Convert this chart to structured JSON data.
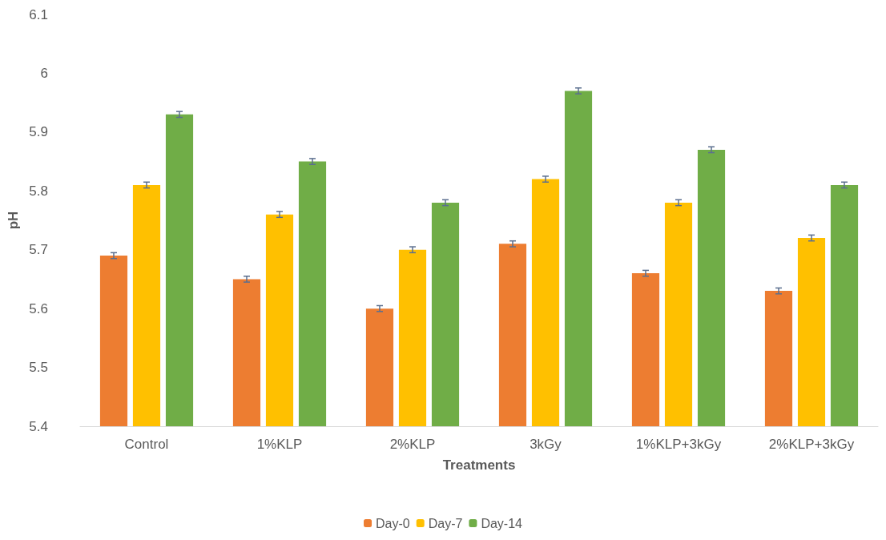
{
  "chart_data": {
    "type": "bar",
    "xlabel": "Treatments",
    "ylabel": "pH",
    "categories": [
      "Control",
      "1%KLP",
      "2%KLP",
      "3kGy",
      "1%KLP+3kGy",
      "2%KLP+3kGy"
    ],
    "series": [
      {
        "name": "Day-0",
        "color": "#ed7d31",
        "values": [
          5.69,
          5.65,
          5.6,
          5.71,
          5.66,
          5.63
        ],
        "errors": [
          0.005,
          0.005,
          0.005,
          0.005,
          0.005,
          0.005
        ]
      },
      {
        "name": "Day-7",
        "color": "#ffc000",
        "values": [
          5.81,
          5.76,
          5.7,
          5.82,
          5.78,
          5.72
        ],
        "errors": [
          0.005,
          0.005,
          0.005,
          0.005,
          0.005,
          0.005
        ]
      },
      {
        "name": "Day-14",
        "color": "#70ad47",
        "values": [
          5.93,
          5.85,
          5.78,
          5.97,
          5.87,
          5.81
        ],
        "errors": [
          0.005,
          0.005,
          0.005,
          0.005,
          0.005,
          0.005
        ]
      }
    ],
    "ylim": [
      5.4,
      6.1
    ],
    "yticks": [
      5.4,
      5.5,
      5.6,
      5.7,
      5.8,
      5.9,
      6,
      6.1
    ],
    "grid": false,
    "legend": "bottom"
  }
}
